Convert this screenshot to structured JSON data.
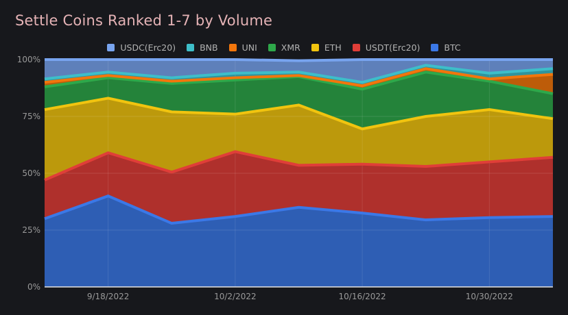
{
  "chart_data": {
    "type": "area",
    "stacked": true,
    "normalized": true,
    "title": "Settle Coins Ranked 1-7 by Volume",
    "x": [
      "9/11/2022",
      "9/18/2022",
      "9/25/2022",
      "10/2/2022",
      "10/9/2022",
      "10/16/2022",
      "10/23/2022",
      "10/30/2022",
      "11/6/2022"
    ],
    "x_tick_labels": [
      "9/18/2022",
      "10/2/2022",
      "10/16/2022",
      "10/30/2022"
    ],
    "y_tick_labels": [
      "0%",
      "25%",
      "50%",
      "75%",
      "100%"
    ],
    "ylim": [
      0,
      100
    ],
    "legend_position": "top",
    "series": [
      {
        "name": "BTC",
        "color": "#3b78e7",
        "values": [
          30,
          40,
          28,
          31,
          35,
          32.5,
          29.5,
          30.5,
          31
        ]
      },
      {
        "name": "USDT(Erc20)",
        "color": "#e03e38",
        "values": [
          17,
          19,
          22.5,
          28.5,
          18.5,
          21.5,
          23.5,
          24.5,
          26
        ]
      },
      {
        "name": "ETH",
        "color": "#f1c40f",
        "values": [
          31,
          24,
          26.5,
          16.5,
          26.5,
          15.5,
          22,
          23,
          17
        ]
      },
      {
        "name": "XMR",
        "color": "#2ea84a",
        "values": [
          10,
          9,
          12.5,
          15,
          12.5,
          17.5,
          19.5,
          12.5,
          11
        ]
      },
      {
        "name": "UNI",
        "color": "#f2760c",
        "values": [
          2,
          1,
          1,
          1,
          0.5,
          1.5,
          1.5,
          1,
          8.5
        ]
      },
      {
        "name": "BNB",
        "color": "#3ebec9",
        "values": [
          1.5,
          1.5,
          1.5,
          2,
          1.5,
          1.5,
          1.5,
          2.5,
          2.5
        ]
      },
      {
        "name": "USDC(Erc20)",
        "color": "#78a4ef",
        "values": [
          8.5,
          5.5,
          8,
          6,
          5,
          10,
          2.5,
          6,
          4
        ]
      }
    ]
  },
  "legend_order": [
    "USDC(Erc20)",
    "BNB",
    "UNI",
    "XMR",
    "ETH",
    "USDT(Erc20)",
    "BTC"
  ]
}
